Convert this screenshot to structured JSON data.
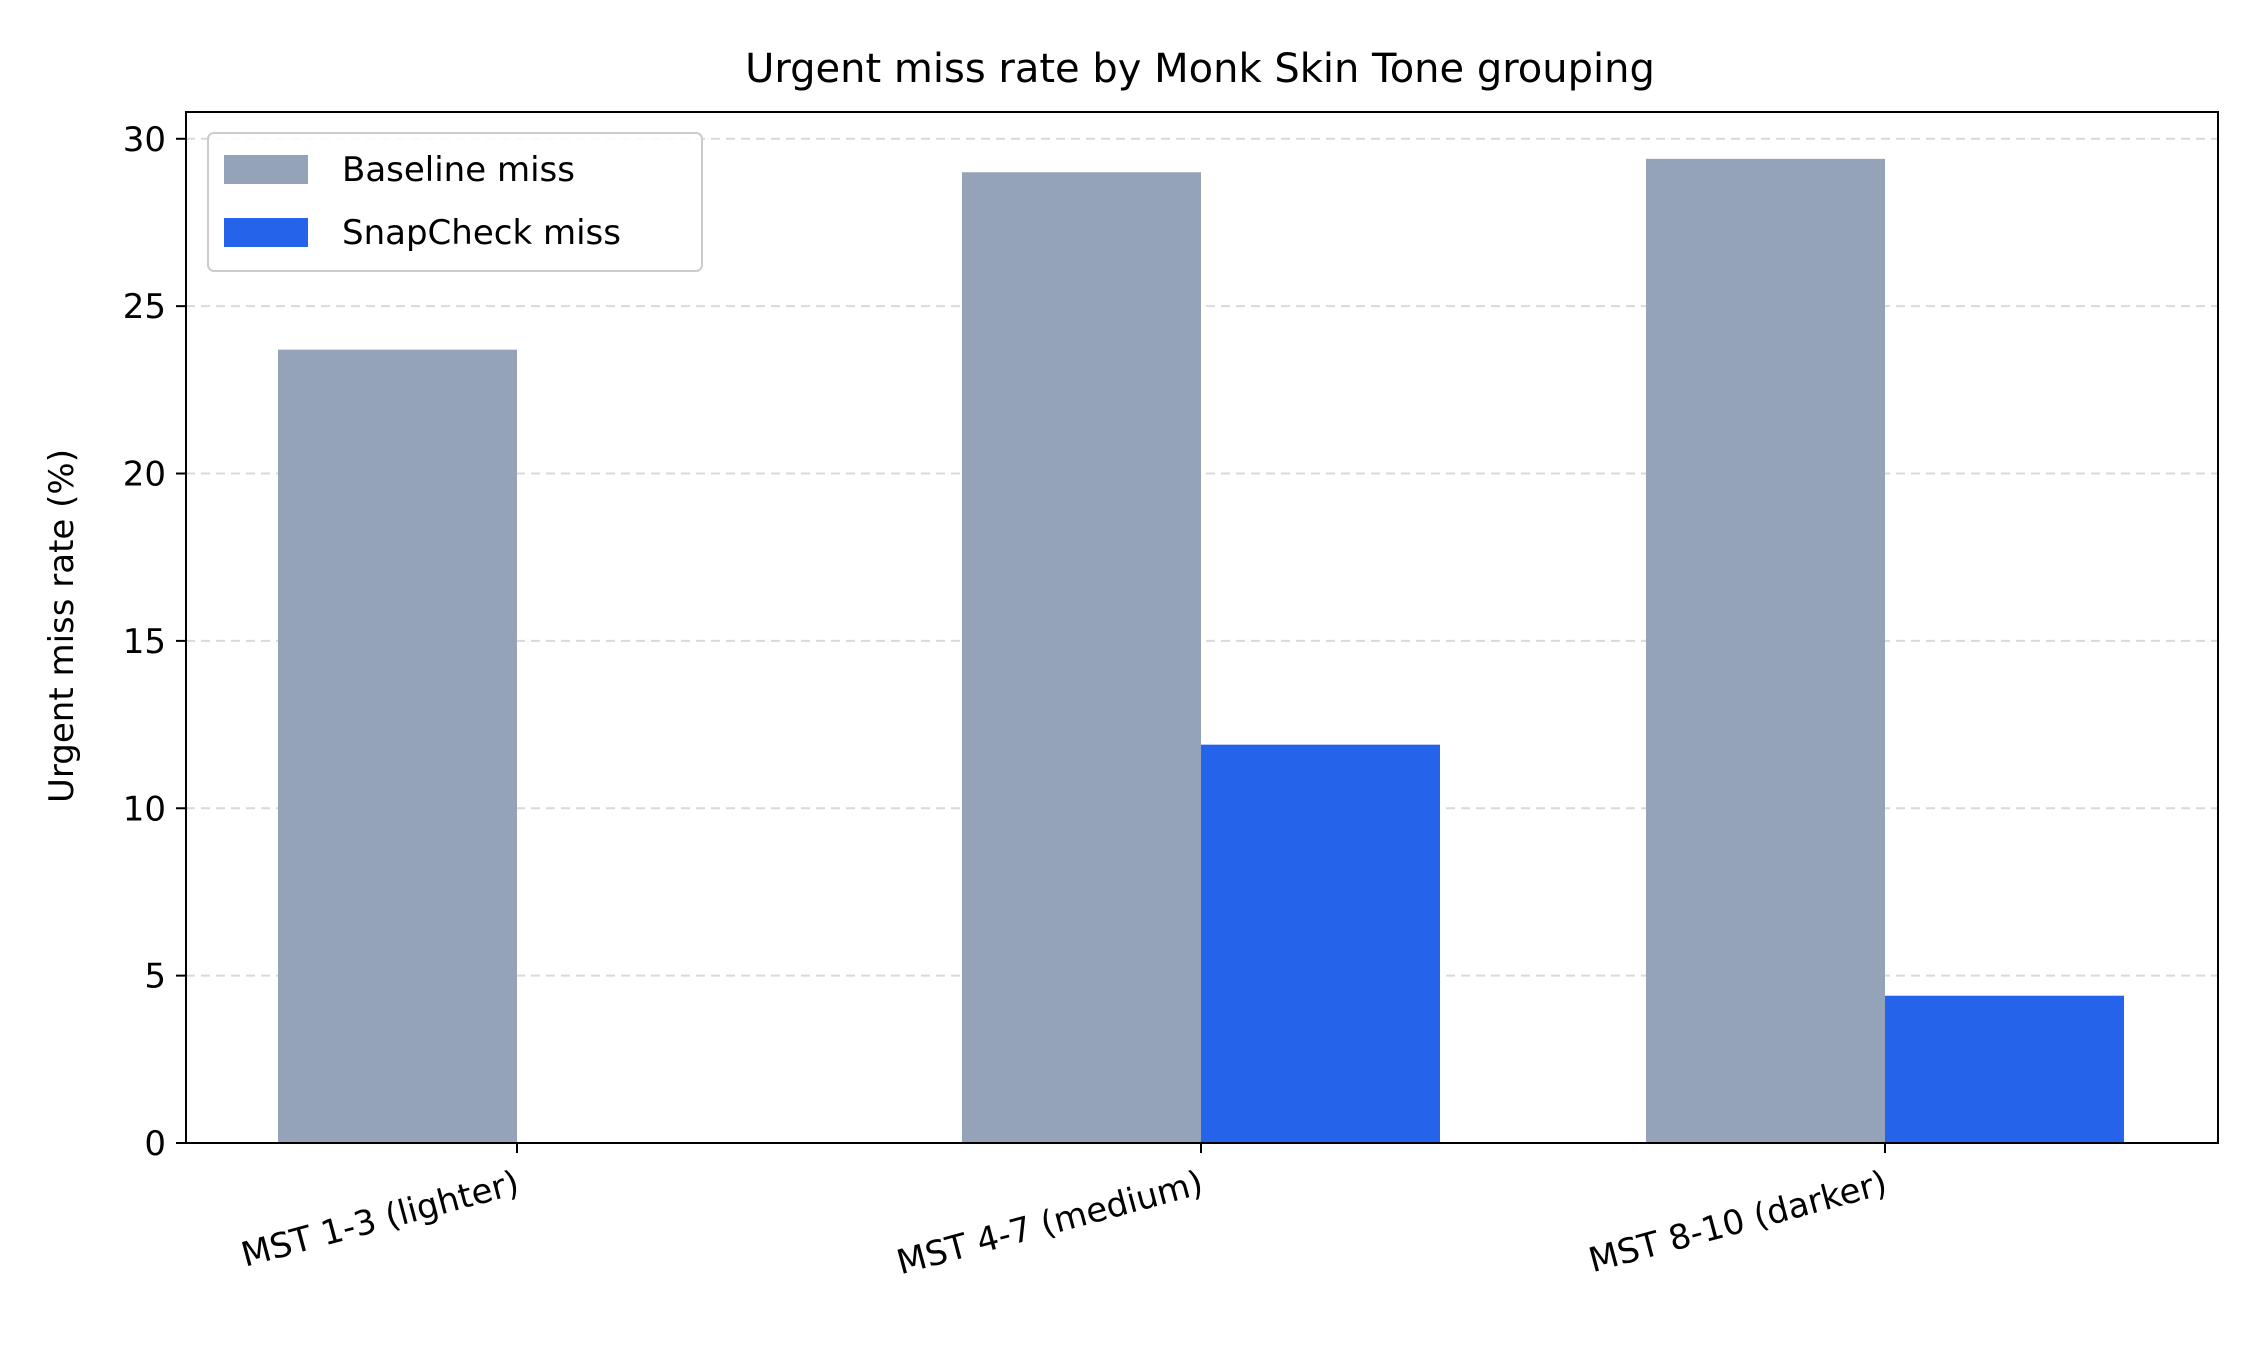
{
  "chart_data": {
    "type": "bar",
    "title": "Urgent miss rate by Monk Skin Tone grouping",
    "xlabel": "",
    "ylabel": "Urgent miss rate (%)",
    "categories": [
      "MST 1-3 (lighter)",
      "MST 4-7 (medium)",
      "MST 8-10 (darker)"
    ],
    "series": [
      {
        "name": "Baseline miss",
        "values": [
          23.7,
          29.0,
          29.4
        ],
        "color": "#94a3b8"
      },
      {
        "name": "SnapCheck miss",
        "values": [
          0.0,
          11.9,
          4.4
        ],
        "color": "#2563eb"
      }
    ],
    "ylim": [
      0,
      30.8
    ],
    "yticks": [
      0,
      5,
      10,
      15,
      20,
      25,
      30
    ],
    "grid": "y-dashed",
    "legend_position": "upper-left"
  }
}
